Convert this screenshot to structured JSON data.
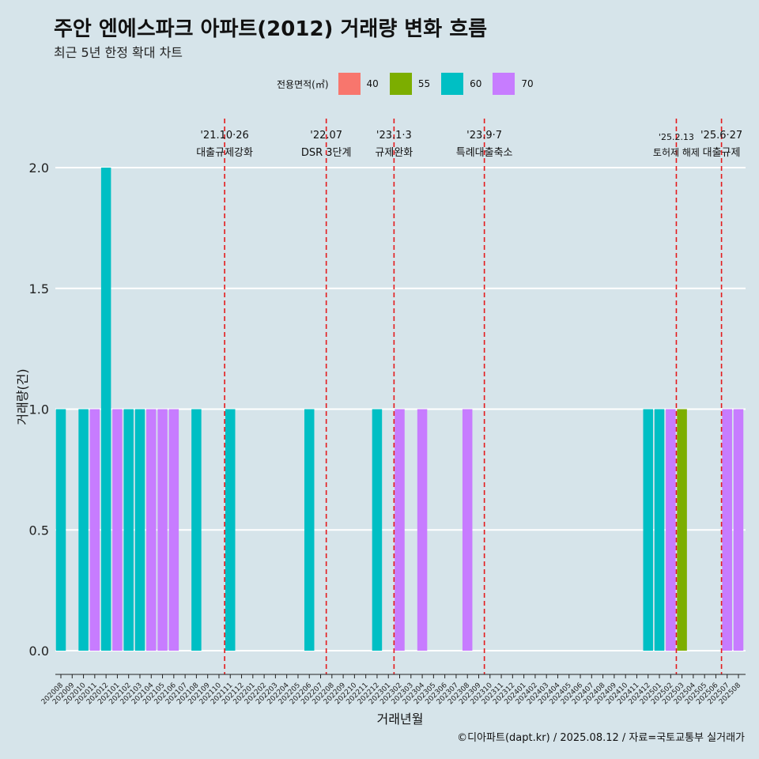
{
  "title": "주안 엔에스파크 아파트(2012) 거래량 변화 흐름",
  "subtitle": "최근 5년 한정 확대 차트",
  "caption": "©디아파트(dapt.kr) / 2025.08.12 / 자료=국토교통부 실거래가",
  "legend": {
    "title": "전용면적(㎡)",
    "items": [
      {
        "label": "40",
        "color": "#F8766D"
      },
      {
        "label": "55",
        "color": "#7CAE00"
      },
      {
        "label": "60",
        "color": "#00BFC4"
      },
      {
        "label": "70",
        "color": "#C77CFF"
      }
    ]
  },
  "chart_data": {
    "type": "bar",
    "xlabel": "거래년월",
    "ylabel": "거래량(건)",
    "ylim": [
      0,
      2
    ],
    "yticks": [
      "0.0",
      "0.5",
      "1.0",
      "1.5",
      "2.0"
    ],
    "grid": true,
    "legend_position": "top",
    "categories": [
      "202008",
      "202009",
      "202010",
      "202011",
      "202012",
      "202101",
      "202102",
      "202103",
      "202104",
      "202105",
      "202106",
      "202107",
      "202108",
      "202109",
      "202110",
      "202111",
      "202112",
      "202201",
      "202202",
      "202203",
      "202204",
      "202205",
      "202206",
      "202207",
      "202208",
      "202209",
      "202210",
      "202211",
      "202212",
      "202301",
      "202302",
      "202303",
      "202304",
      "202305",
      "202306",
      "202307",
      "202308",
      "202309",
      "202310",
      "202311",
      "202312",
      "202401",
      "202402",
      "202403",
      "202404",
      "202405",
      "202406",
      "202407",
      "202408",
      "202409",
      "202410",
      "202411",
      "202412",
      "202501",
      "202502",
      "202503",
      "202504",
      "202505",
      "202506",
      "202507",
      "202508"
    ],
    "bars": [
      {
        "month": "202008",
        "area": "60",
        "value": 1
      },
      {
        "month": "202010",
        "area": "60",
        "value": 1
      },
      {
        "month": "202011",
        "area": "70",
        "value": 1
      },
      {
        "month": "202012",
        "area": "60",
        "value": 2
      },
      {
        "month": "202101",
        "area": "70",
        "value": 1
      },
      {
        "month": "202102",
        "area": "60",
        "value": 1
      },
      {
        "month": "202103",
        "area": "60",
        "value": 1
      },
      {
        "month": "202104",
        "area": "70",
        "value": 1
      },
      {
        "month": "202105",
        "area": "70",
        "value": 1
      },
      {
        "month": "202106",
        "area": "70",
        "value": 1
      },
      {
        "month": "202108",
        "area": "60",
        "value": 1
      },
      {
        "month": "202111",
        "area": "60",
        "value": 1
      },
      {
        "month": "202206",
        "area": "60",
        "value": 1
      },
      {
        "month": "202212",
        "area": "60",
        "value": 1
      },
      {
        "month": "202302",
        "area": "70",
        "value": 1
      },
      {
        "month": "202304",
        "area": "70",
        "value": 1
      },
      {
        "month": "202308",
        "area": "70",
        "value": 1
      },
      {
        "month": "202412",
        "area": "60",
        "value": 1
      },
      {
        "month": "202501",
        "area": "60",
        "value": 1
      },
      {
        "month": "202502",
        "area": "70",
        "value": 1
      },
      {
        "month": "202503",
        "area": "55",
        "value": 1
      },
      {
        "month": "202507",
        "area": "70",
        "value": 1
      },
      {
        "month": "202508",
        "area": "70",
        "value": 1
      }
    ],
    "events": [
      {
        "pos": 14.5,
        "date": "'21.10·26",
        "label": "대출규제강화"
      },
      {
        "pos": 23.5,
        "date": "'22.07",
        "label": "DSR 3단계"
      },
      {
        "pos": 29.5,
        "date": "'23.1·3",
        "label": "규제완화"
      },
      {
        "pos": 37.5,
        "date": "'23.9·7",
        "label": "특례대출축소"
      },
      {
        "pos": 54.5,
        "date": "'25.2.13",
        "label": "토허제 해제"
      },
      {
        "pos": 58.5,
        "date": "'25.6·27",
        "label": "대출규제"
      }
    ],
    "event_color": "#e41a1c"
  }
}
